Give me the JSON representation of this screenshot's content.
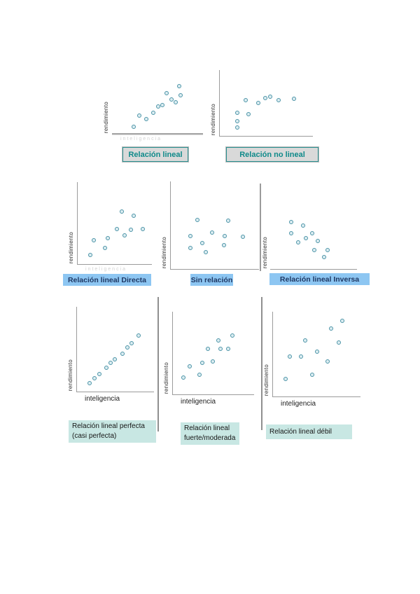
{
  "colors": {
    "axis": "#9b9b9b",
    "divider": "#8f8f8f",
    "marker_stroke": "#4a93a6",
    "marker_fill": "#dcedf2",
    "cap1_bg": "#d9d9d9",
    "cap1_border": "#2a9090",
    "cap1_text": "#0f8a8a",
    "cap2_bg": "#8dc6f2",
    "cap2_text": "#1f3864",
    "cap3_bg": "#c8e7e3",
    "cap3_text": "#161616"
  },
  "chart_data": [
    {
      "id": "relacion-lineal",
      "type": "scatter",
      "title": "Relación lineal",
      "ylabel": "rendimiento",
      "xlabel": "inteligencia",
      "xlabel_style": "faint",
      "y_axis_line": false,
      "x_axis_line": true,
      "legend": "none",
      "grid": false,
      "points_pct_x_right_y_up": [
        [
          24,
          10
        ],
        [
          30,
          28
        ],
        [
          38,
          22
        ],
        [
          45,
          32
        ],
        [
          51,
          42
        ],
        [
          55,
          44
        ],
        [
          60,
          63
        ],
        [
          65,
          53
        ],
        [
          70,
          49
        ],
        [
          74,
          74
        ],
        [
          75,
          60
        ]
      ]
    },
    {
      "id": "relacion-no-lineal",
      "type": "scatter",
      "title": "Relación no lineal",
      "ylabel": "rendimiento",
      "xlabel": "",
      "y_axis_line": true,
      "x_axis_line": true,
      "legend": "none",
      "grid": false,
      "points_pct_x_right_y_up": [
        [
          19,
          35
        ],
        [
          19,
          22
        ],
        [
          19,
          13
        ],
        [
          28,
          54
        ],
        [
          31,
          33
        ],
        [
          41,
          50
        ],
        [
          49,
          57
        ],
        [
          54,
          60
        ],
        [
          63,
          54
        ],
        [
          80,
          56
        ]
      ]
    },
    {
      "id": "relacion-lineal-directa",
      "type": "scatter",
      "title": "Relación lineal Directa",
      "ylabel": "rendimiento",
      "xlabel": "inteligencia",
      "xlabel_style": "faint",
      "y_axis_line": true,
      "x_axis_line": true,
      "legend": "none",
      "grid": false,
      "points_pct_x_right_y_up": [
        [
          17,
          11
        ],
        [
          22,
          29
        ],
        [
          37,
          20
        ],
        [
          41,
          32
        ],
        [
          53,
          43
        ],
        [
          59,
          64
        ],
        [
          63,
          35
        ],
        [
          72,
          42
        ],
        [
          75,
          59
        ],
        [
          88,
          43
        ]
      ]
    },
    {
      "id": "sin-relacion",
      "type": "scatter",
      "title": "Sin relación",
      "ylabel": "rendimiento",
      "xlabel": "",
      "y_axis_line": true,
      "x_axis_line": true,
      "legend": "none",
      "grid": false,
      "points_pct_x_right_y_up": [
        [
          30,
          56
        ],
        [
          65,
          55
        ],
        [
          22,
          38
        ],
        [
          47,
          42
        ],
        [
          61,
          38
        ],
        [
          82,
          37
        ],
        [
          36,
          30
        ],
        [
          60,
          27
        ],
        [
          22,
          24
        ],
        [
          40,
          19
        ]
      ]
    },
    {
      "id": "relacion-lineal-inversa",
      "type": "scatter",
      "title": "Relación lineal Inversa",
      "ylabel": "rendimiento",
      "xlabel": "",
      "y_axis_line": "detached-left",
      "x_axis_line": true,
      "legend": "none",
      "grid": false,
      "points_pct_x_right_y_up": [
        [
          24,
          55
        ],
        [
          38,
          51
        ],
        [
          24,
          42
        ],
        [
          48,
          42
        ],
        [
          32,
          31
        ],
        [
          41,
          36
        ],
        [
          55,
          33
        ],
        [
          51,
          22
        ],
        [
          66,
          22
        ],
        [
          62,
          14
        ]
      ]
    },
    {
      "id": "relacion-lineal-perfecta",
      "type": "scatter",
      "title": "Relación lineal perfecta\n(casi perfecta)",
      "ylabel": "rendimiento",
      "xlabel": "inteligencia",
      "xlabel_style": "dark",
      "y_axis_line": true,
      "x_axis_line": true,
      "legend": "none",
      "grid": false,
      "points_pct_x_right_y_up": [
        [
          16,
          10
        ],
        [
          23,
          16
        ],
        [
          29,
          21
        ],
        [
          38,
          28
        ],
        [
          44,
          34
        ],
        [
          49,
          38
        ],
        [
          59,
          45
        ],
        [
          65,
          52
        ],
        [
          71,
          57
        ],
        [
          80,
          66
        ]
      ]
    },
    {
      "id": "relacion-lineal-fuerte-moderada",
      "type": "scatter",
      "title": "Relación lineal\nfuerte/moderada",
      "ylabel": "rendimiento",
      "xlabel": "inteligencia",
      "xlabel_style": "dark",
      "y_axis_line": true,
      "x_axis_line": true,
      "legend": "none",
      "grid": false,
      "points_pct_x_right_y_up": [
        [
          13,
          20
        ],
        [
          21,
          34
        ],
        [
          33,
          24
        ],
        [
          36,
          38
        ],
        [
          43,
          55
        ],
        [
          49,
          40
        ],
        [
          56,
          65
        ],
        [
          59,
          55
        ],
        [
          68,
          55
        ],
        [
          73,
          71
        ]
      ]
    },
    {
      "id": "relacion-lineal-debil",
      "type": "scatter",
      "title": "Relación lineal débil",
      "ylabel": "rendimiento",
      "xlabel": "inteligencia",
      "xlabel_style": "dark",
      "y_axis_line": true,
      "x_axis_line": true,
      "legend": "none",
      "grid": false,
      "points_pct_x_right_y_up": [
        [
          14,
          21
        ],
        [
          19,
          47
        ],
        [
          32,
          47
        ],
        [
          37,
          66
        ],
        [
          45,
          26
        ],
        [
          50,
          53
        ],
        [
          62,
          41
        ],
        [
          66,
          80
        ],
        [
          75,
          64
        ],
        [
          79,
          89
        ]
      ]
    }
  ]
}
